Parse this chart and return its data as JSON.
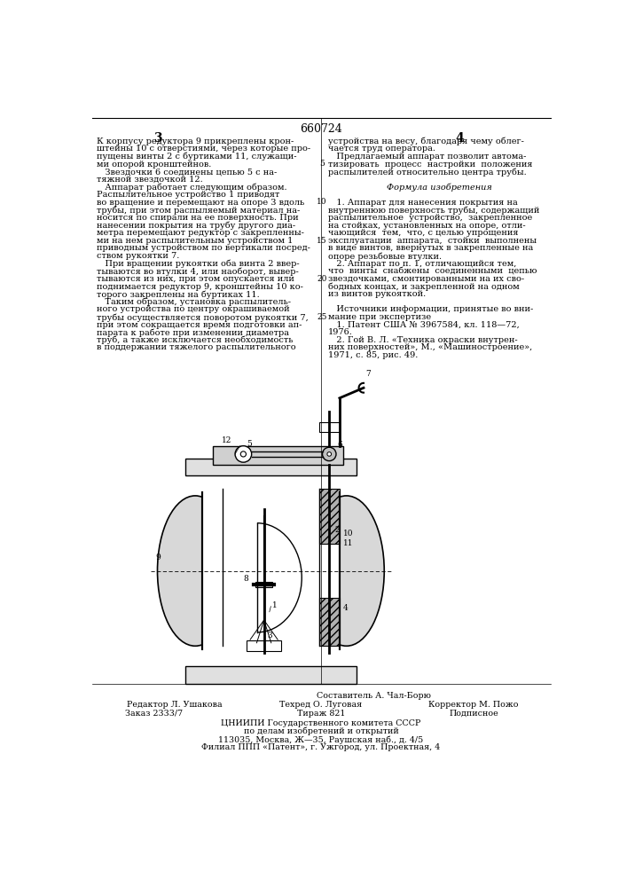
{
  "patent_number": "660724",
  "page_left": "3",
  "page_right": "4",
  "bg_color": "#ffffff",
  "text_color": "#000000",
  "col_left_text": [
    "К корпусу редуктора 9 прикреплены крон-",
    "штейны 10 с отверстиями, через которые про-",
    "пущены винты 2 с буртиками 11, служащи-",
    "ми опорой кронштейнов.",
    "   Звездочки 6 соединены цепью 5 с на-",
    "тяжной звездочкой 12.",
    "   Аппарат работает следующим образом.",
    "Распылительное устройство 1 приводят",
    "во вращение и перемещают на опоре 3 вдоль",
    "трубы, при этом распыляемый материал на-",
    "носится по спирали на ее поверхность. При",
    "нанесении покрытия на трубу другого диа-",
    "метра перемещают редуктор с закрепленны-",
    "ми на нем распылительным устройством 1",
    "приводным устройством по вертикали посред-",
    "ством рукоятки 7.",
    "   При вращении рукоятки оба винта 2 ввер-",
    "тываются во втулки 4, или наоборот, вывер-",
    "тываются из них, при этом опускается или",
    "поднимается редуктор 9, кронштейны 10 ко-",
    "торого закреплены на буртиках 11.",
    "   Таким образом, установка распылитель-",
    "ного устройства по центру окрашиваемой",
    "трубы осуществляется поворотом рукоятки 7,",
    "при этом сокращается время подготовки ап-",
    "парата к работе при изменении диаметра",
    "труб, а также исключается необходимость",
    "в поддержании тяжелого распылительного"
  ],
  "col_right_text": [
    "устройства на весу, благодаря чему облег-",
    "чается труд оператора.",
    "   Предлагаемый аппарат позволит автома-",
    "тизировать  процесс  настройки  положения",
    "распылителей относительно центра трубы.",
    "",
    "Формула изобретения",
    "",
    "   1. Аппарат для нанесения покрытия на",
    "внутреннюю поверхность трубы, содержащий",
    "распылительное  устройство,  закрепленное",
    "на стойках, установленных на опоре, отли-",
    "чающийся  тем,  что, с целью упрощения",
    "эксплуатации  аппарата,  стойки  выполнены",
    "в виде винтов, ввернутых в закрепленные на",
    "опоре резьбовые втулки.",
    "   2. Аппарат по п. 1, отличающийся тем,",
    "что  винты  снабжены  соединенными  цепью",
    "звездочками, смонтированными на их сво-",
    "бодных концах, и закрепленной на одном",
    "из винтов рукояткой.",
    "",
    "   Источники информации, принятые во вни-",
    "мание при экспертизе",
    "   1. Патент США № 3967584, кл. 118—72,",
    "1976.",
    "   2. Гой В. Л. «Техника окраски внутрен-",
    "них поверхностей», М., «Машиностроение»,",
    "1971, с. 85, рис. 49."
  ],
  "footer_line1": "Составитель А. Чал-Борю",
  "footer_editor": "Редактор Л. Ушакова",
  "footer_tekhred": "Техред О. Луговая",
  "footer_korrektor": "Корректор М. Пожо",
  "footer_zakaz": "Заказ 2333/7",
  "footer_tirazh": "Тираж 821",
  "footer_podpisnoe": "Подписное",
  "footer_tsnipi": "ЦНИИПИ Государственного комитета СССР",
  "footer_podel": "по делам изобретений и открытий",
  "footer_addr1": "113035, Москва, Ж—35, Раушская наб., д. 4/5",
  "footer_addr2": "Филиал ППП «Патент», г. Ужгород, ул. Проектная, 4"
}
